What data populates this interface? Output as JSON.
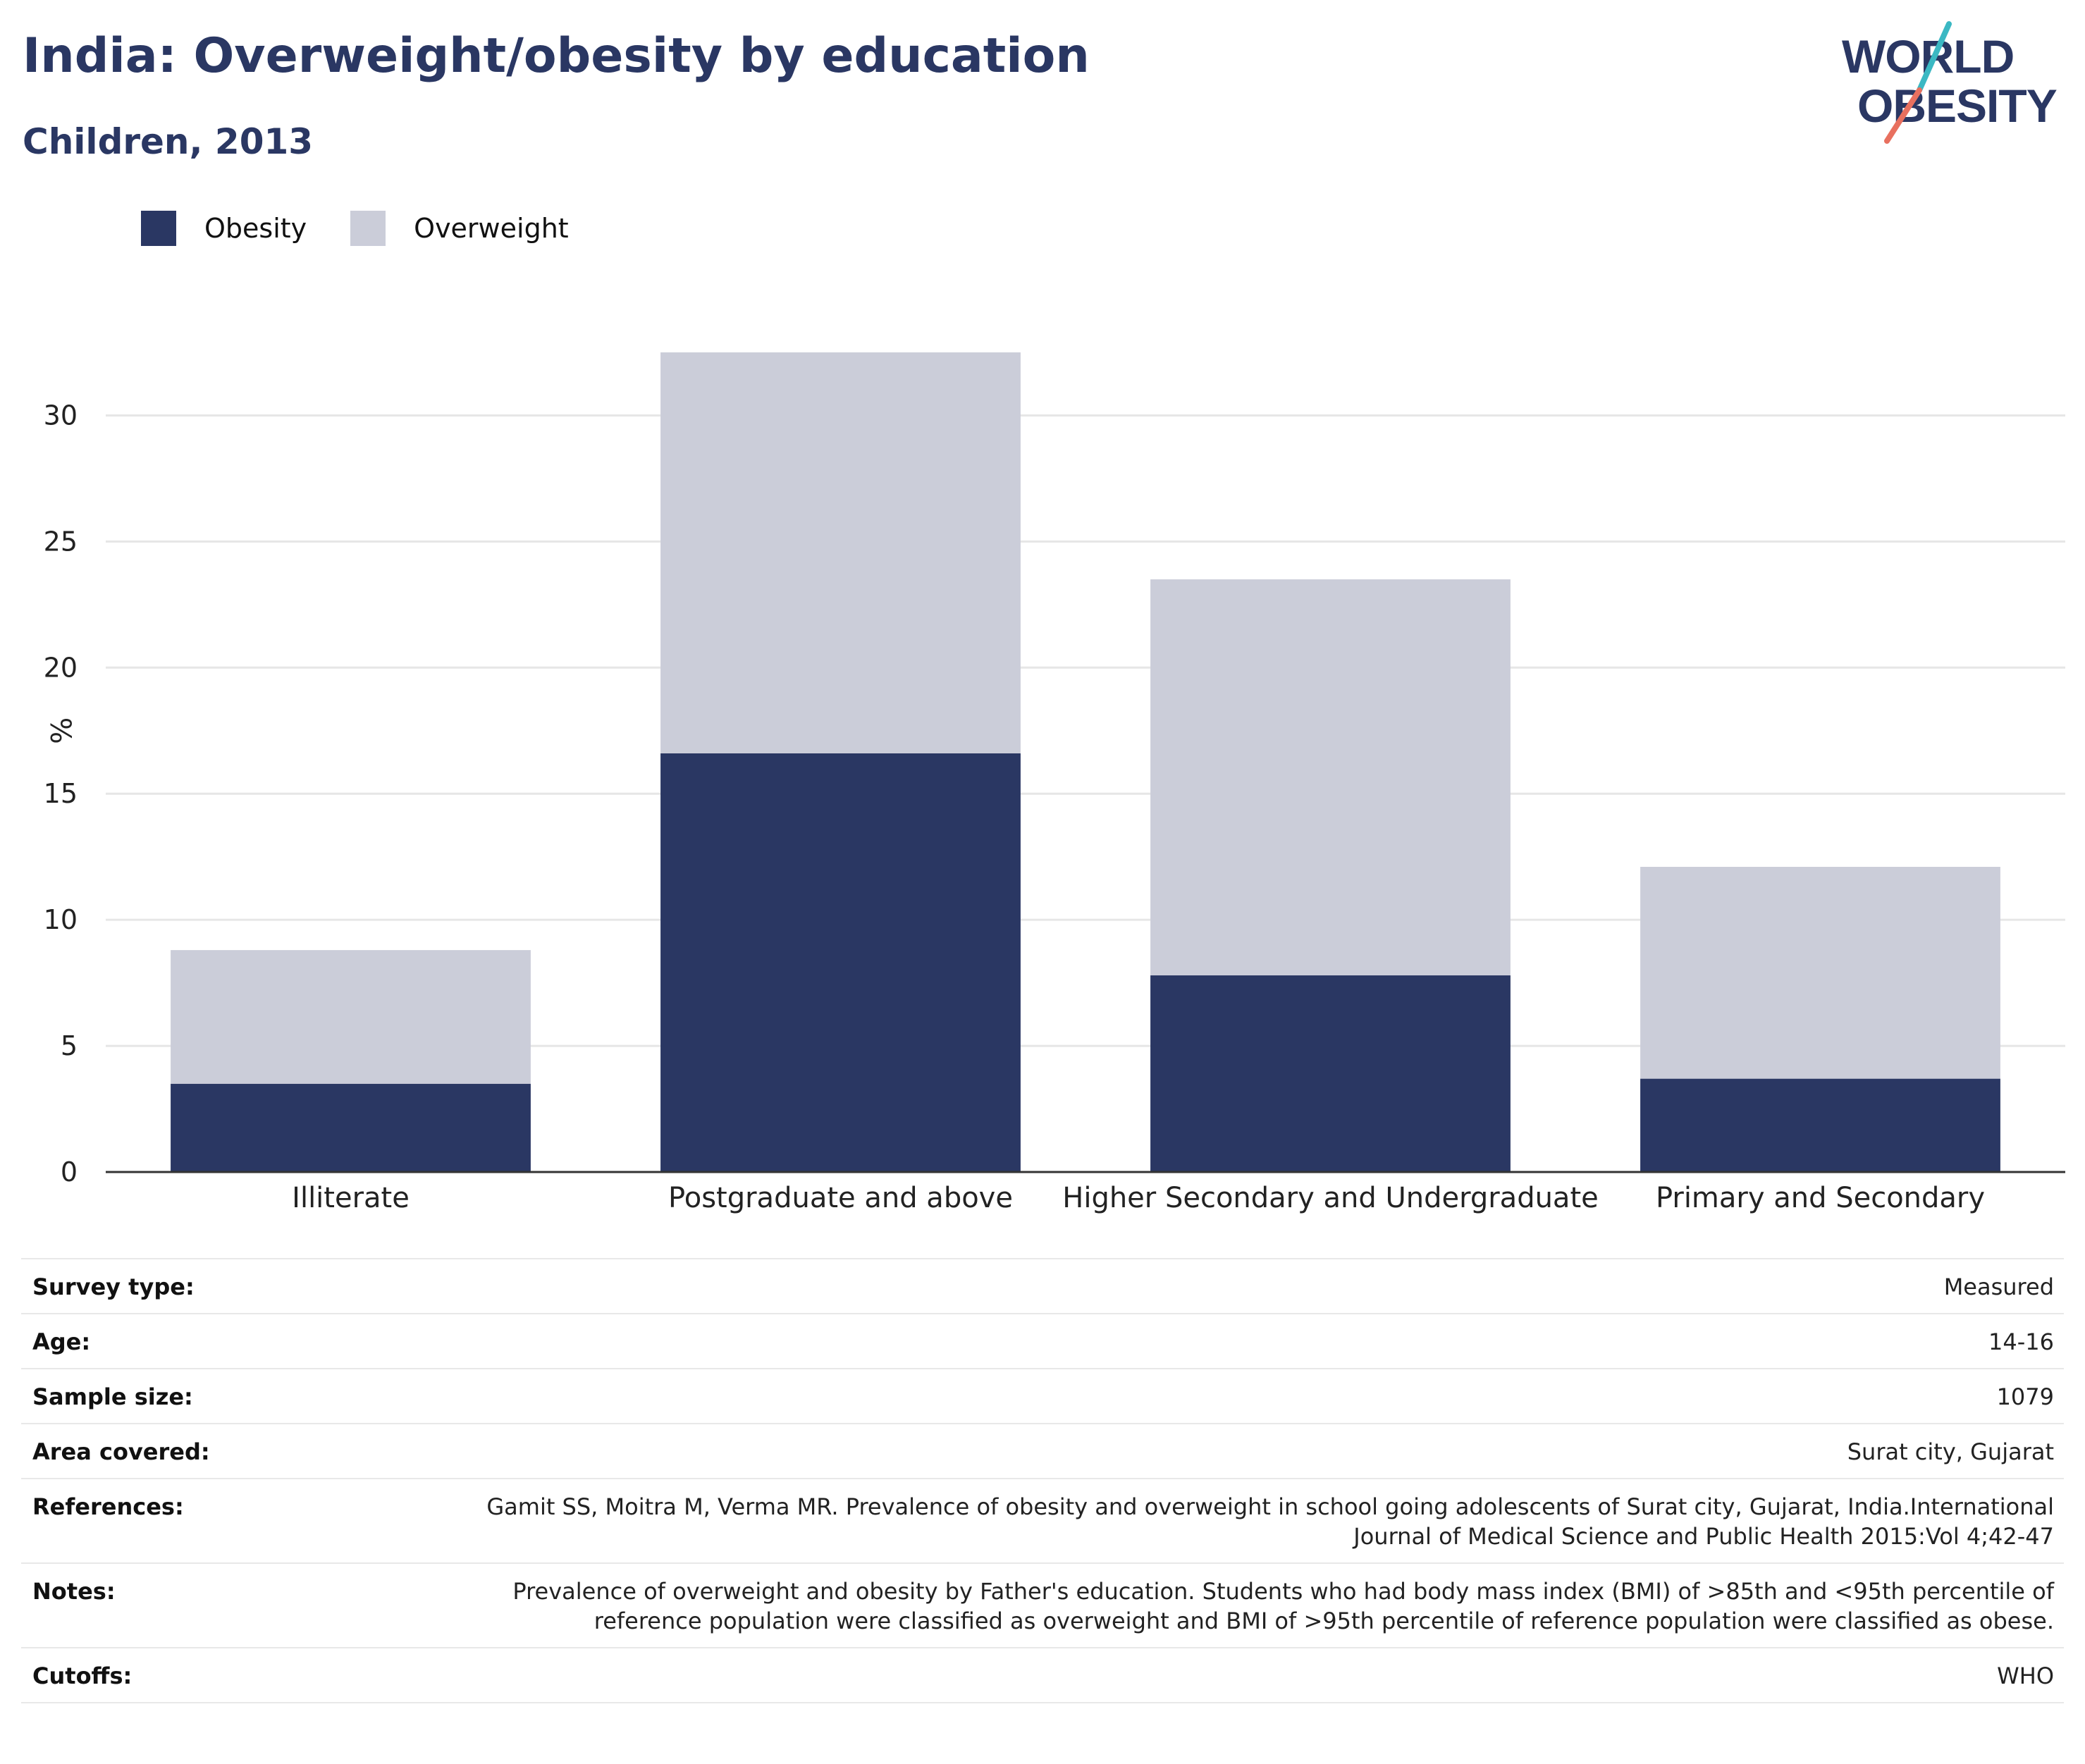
{
  "header": {
    "title": "India: Overweight/obesity by education",
    "subtitle": "Children, 2013"
  },
  "logo": {
    "line1": "WORLD",
    "line2": "OBESITY",
    "accent_colors": [
      "#3bb8c3",
      "#e8705f"
    ]
  },
  "colors": {
    "obesity": "#2a3763",
    "overweight": "#cbcdd9",
    "title": "#2a3763"
  },
  "legend": {
    "items": [
      {
        "label": "Obesity",
        "color": "#2a3763"
      },
      {
        "label": "Overweight",
        "color": "#cbcdd9"
      }
    ]
  },
  "chart_data": {
    "type": "bar",
    "stacked": true,
    "categories": [
      "Illiterate",
      "Postgraduate and above",
      "Higher Secondary and Undergraduate",
      "Primary and Secondary"
    ],
    "series": [
      {
        "name": "Obesity",
        "values": [
          3.5,
          16.6,
          7.8,
          3.7
        ]
      },
      {
        "name": "Overweight",
        "values": [
          5.3,
          15.9,
          15.7,
          8.4
        ]
      }
    ],
    "ylabel": "%",
    "xlabel": "",
    "ylim": [
      0,
      32.5
    ],
    "yticks": [
      0,
      5,
      10,
      15,
      20,
      25,
      30
    ],
    "grid": true
  },
  "info": {
    "rows": [
      {
        "key": "Survey type:",
        "value": "Measured"
      },
      {
        "key": "Age:",
        "value": "14-16"
      },
      {
        "key": "Sample size:",
        "value": "1079"
      },
      {
        "key": "Area covered:",
        "value": "Surat city, Gujarat"
      },
      {
        "key": "References:",
        "value": "Gamit SS, Moitra M, Verma MR. Prevalence of obesity and overweight in school going adolescents of Surat city, Gujarat, India.International Journal of Medical Science and Public Health 2015:Vol 4;42-47"
      },
      {
        "key": "Notes:",
        "value": "Prevalence of overweight and obesity by Father's education. Students who had body mass index (BMI) of >85th and <95th percentile of reference population were classified as overweight and BMI of >95th percentile of reference population were classified as obese."
      },
      {
        "key": "Cutoffs:",
        "value": "WHO"
      }
    ]
  }
}
